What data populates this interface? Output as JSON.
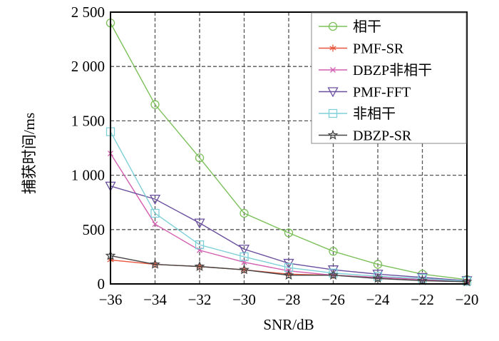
{
  "chart_data": {
    "type": "line",
    "title": "",
    "xlabel": "SNR/dB",
    "ylabel": "捕获时间/ms",
    "x": [
      -36,
      -34,
      -32,
      -30,
      -28,
      -26,
      -24,
      -22,
      -20
    ],
    "xlim": [
      -36,
      -20
    ],
    "ylim": [
      0,
      2500
    ],
    "xticks": [
      -36,
      -34,
      -32,
      -30,
      -28,
      -26,
      -24,
      -22,
      -20
    ],
    "xtick_labels": [
      "−36",
      "−34",
      "−32",
      "−30",
      "−28",
      "−26",
      "−24",
      "−22",
      "−20"
    ],
    "yticks": [
      0,
      500,
      1000,
      1500,
      2000,
      2500
    ],
    "ytick_labels": [
      "0",
      "500",
      "1 000",
      "1 500",
      "2 000",
      "2 500"
    ],
    "grid": true,
    "legend_position": "top-right",
    "series": [
      {
        "name": "相干",
        "color": "#7cc05a",
        "marker": "circle",
        "values": [
          2400,
          1650,
          1160,
          650,
          470,
          300,
          180,
          90,
          40
        ]
      },
      {
        "name": "PMF-SR",
        "color": "#e8553c",
        "marker": "asterisk",
        "values": [
          220,
          180,
          160,
          130,
          90,
          80,
          60,
          40,
          20
        ]
      },
      {
        "name": "DBZP非相干",
        "color": "#d45fb0",
        "marker": "x",
        "values": [
          1200,
          550,
          310,
          200,
          120,
          80,
          60,
          40,
          20
        ]
      },
      {
        "name": "PMF-FFT",
        "color": "#6a4f9e",
        "marker": "triangle-down",
        "values": [
          900,
          780,
          560,
          320,
          190,
          130,
          90,
          60,
          30
        ]
      },
      {
        "name": "非相干",
        "color": "#7fd0d8",
        "marker": "square",
        "values": [
          1400,
          650,
          360,
          250,
          150,
          100,
          70,
          50,
          25
        ]
      },
      {
        "name": "DBZP-SR",
        "color": "#444444",
        "marker": "star",
        "values": [
          260,
          180,
          160,
          130,
          80,
          80,
          50,
          30,
          20
        ]
      }
    ]
  }
}
